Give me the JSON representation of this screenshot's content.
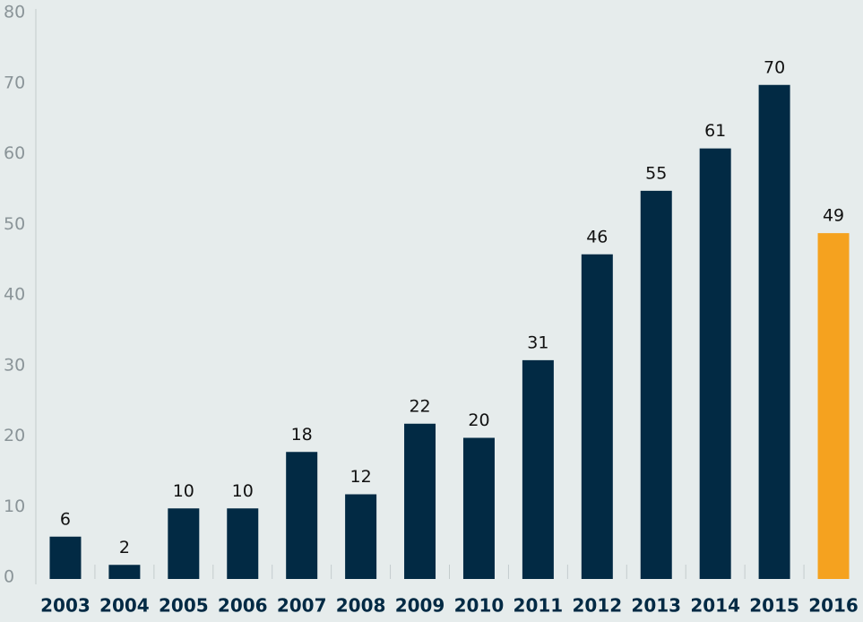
{
  "chart_data": {
    "type": "bar",
    "categories": [
      "2003",
      "2004",
      "2005",
      "2006",
      "2007",
      "2008",
      "2009",
      "2010",
      "2011",
      "2012",
      "2013",
      "2014",
      "2015",
      "2016"
    ],
    "values": [
      6,
      2,
      10,
      10,
      18,
      12,
      22,
      20,
      31,
      46,
      55,
      61,
      70,
      49
    ],
    "colors": [
      "#022a44",
      "#022a44",
      "#022a44",
      "#022a44",
      "#022a44",
      "#022a44",
      "#022a44",
      "#022a44",
      "#022a44",
      "#022a44",
      "#022a44",
      "#022a44",
      "#022a44",
      "#f5a21f"
    ],
    "ylim": [
      0,
      80
    ],
    "yticks": [
      0,
      10,
      20,
      30,
      40,
      50,
      60,
      70,
      80
    ],
    "grid": false
  }
}
